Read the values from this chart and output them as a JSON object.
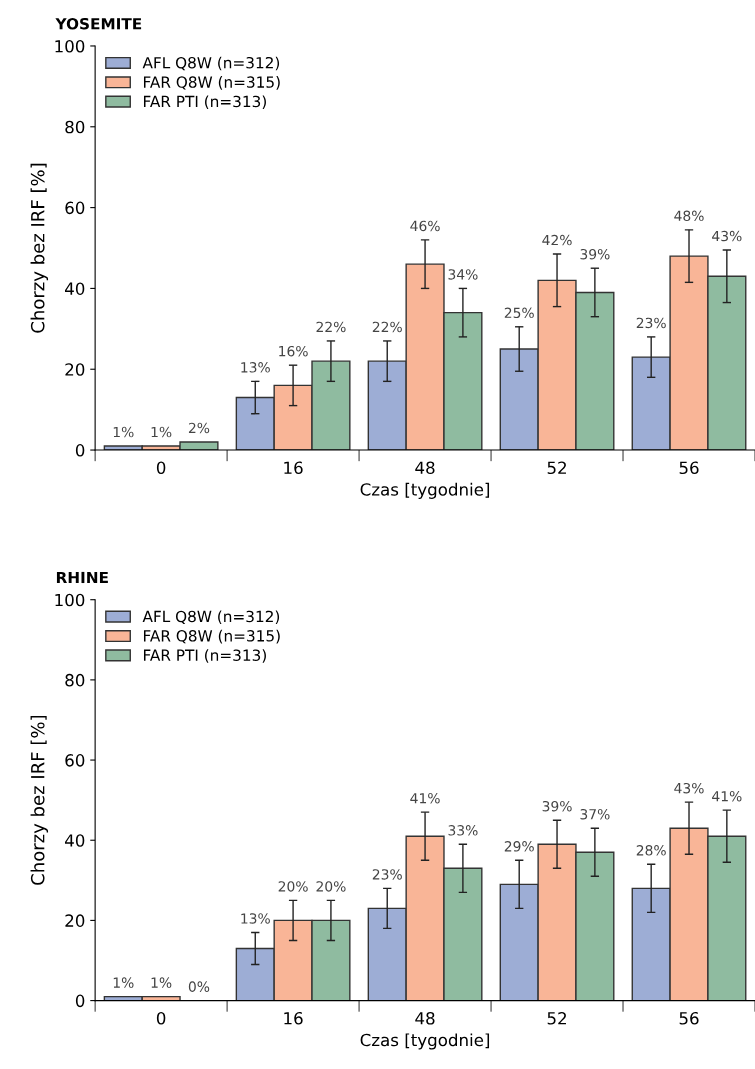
{
  "chart_data": [
    {
      "type": "bar",
      "title": "YOSEMITE",
      "xlabel": "Czas [tygodnie]",
      "ylabel": "Chorzy bez IRF [%]",
      "categories": [
        "0",
        "16",
        "48",
        "52",
        "56"
      ],
      "ylim": [
        0,
        100
      ],
      "yticks": [
        0,
        20,
        40,
        60,
        80,
        100
      ],
      "grid": false,
      "legend": "top left",
      "series": [
        {
          "name": "AFL Q8W (n=312)",
          "color": "#9dadd5",
          "values": [
            1,
            13,
            22,
            25,
            23
          ],
          "errors": [
            null,
            4,
            5,
            5.5,
            5
          ],
          "value_labels": [
            "1%",
            "13%",
            "22%",
            "25%",
            "23%"
          ]
        },
        {
          "name": "FAR Q8W (n=315)",
          "color": "#f9b597",
          "values": [
            1,
            16,
            46,
            42,
            48
          ],
          "errors": [
            null,
            5,
            6,
            6.5,
            6.5
          ],
          "value_labels": [
            "1%",
            "16%",
            "46%",
            "42%",
            "48%"
          ]
        },
        {
          "name": "FAR PTI (n=313)",
          "color": "#8fbba0",
          "values": [
            2,
            22,
            34,
            39,
            43
          ],
          "errors": [
            null,
            5,
            6,
            6,
            6.5
          ],
          "value_labels": [
            "2%",
            "22%",
            "34%",
            "39%",
            "43%"
          ]
        }
      ]
    },
    {
      "type": "bar",
      "title": "RHINE",
      "xlabel": "Czas [tygodnie]",
      "ylabel": "Chorzy bez IRF [%]",
      "categories": [
        "0",
        "16",
        "48",
        "52",
        "56"
      ],
      "ylim": [
        0,
        100
      ],
      "yticks": [
        0,
        20,
        40,
        60,
        80,
        100
      ],
      "grid": false,
      "legend": "top left",
      "series": [
        {
          "name": "AFL Q8W (n=312)",
          "color": "#9dadd5",
          "values": [
            1,
            13,
            23,
            29,
            28
          ],
          "errors": [
            null,
            4,
            5,
            6,
            6
          ],
          "value_labels": [
            "1%",
            "13%",
            "23%",
            "29%",
            "28%"
          ]
        },
        {
          "name": "FAR Q8W (n=315)",
          "color": "#f9b597",
          "values": [
            1,
            20,
            41,
            39,
            43
          ],
          "errors": [
            null,
            5,
            6,
            6,
            6.5
          ],
          "value_labels": [
            "1%",
            "20%",
            "41%",
            "39%",
            "43%"
          ]
        },
        {
          "name": "FAR PTI (n=313)",
          "color": "#8fbba0",
          "values": [
            0,
            20,
            33,
            37,
            41
          ],
          "errors": [
            null,
            5,
            6,
            6,
            6.5
          ],
          "value_labels": [
            "0%",
            "20%",
            "33%",
            "37%",
            "41%"
          ]
        }
      ]
    }
  ]
}
